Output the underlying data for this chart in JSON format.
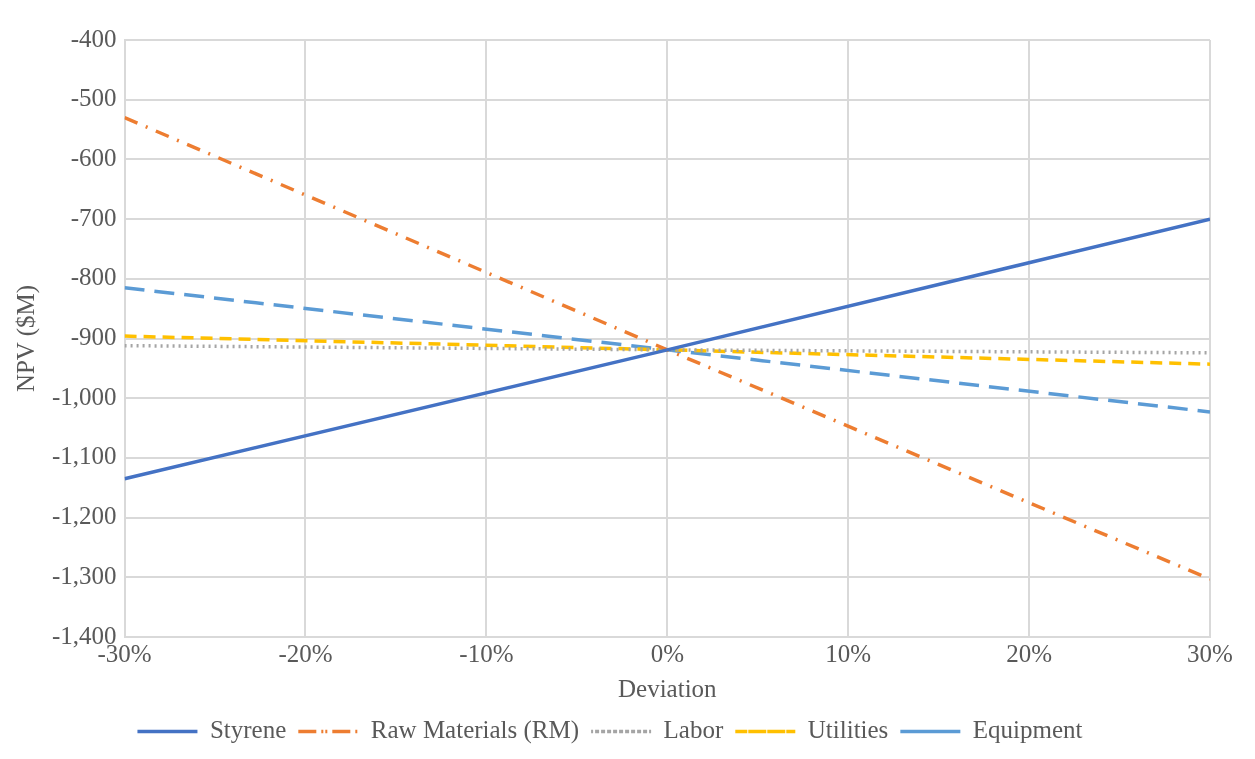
{
  "chart_data": {
    "type": "line",
    "xlabel": "Deviation",
    "ylabel": "NPV ($M)",
    "x": [
      -30,
      0,
      30
    ],
    "series": [
      {
        "name": "Styrene",
        "color": "#4472c4",
        "line_style": "solid",
        "values": [
          -1135,
          -919,
          -700
        ]
      },
      {
        "name": "Raw Materials (RM)",
        "color": "#ed7d31",
        "line_style": "dashdot",
        "values": [
          -530,
          -919,
          -1303
        ]
      },
      {
        "name": "Labor",
        "color": "#a5a5a5",
        "line_style": "dotted",
        "values": [
          -912,
          -919,
          -924
        ]
      },
      {
        "name": "Utilities",
        "color": "#ffc000",
        "line_style": "dashed",
        "values": [
          -896,
          -919,
          -943
        ]
      },
      {
        "name": "Equipment",
        "color": "#5b9bd5",
        "line_style": "longdash",
        "values": [
          -815,
          -919,
          -1023
        ]
      }
    ],
    "xlim": [
      -30,
      30
    ],
    "xticks": [
      {
        "value": -30,
        "label": "-30%"
      },
      {
        "value": -20,
        "label": "-20%"
      },
      {
        "value": -10,
        "label": "-10%"
      },
      {
        "value": 0,
        "label": "0%"
      },
      {
        "value": 10,
        "label": "10%"
      },
      {
        "value": 20,
        "label": "20%"
      },
      {
        "value": 30,
        "label": "30%"
      }
    ],
    "ylim": [
      -1400,
      -400
    ],
    "yticks": [
      {
        "value": -1400,
        "label": "-1,400"
      },
      {
        "value": -1300,
        "label": "-1,300"
      },
      {
        "value": -1200,
        "label": "-1,200"
      },
      {
        "value": -1100,
        "label": "-1,100"
      },
      {
        "value": -1000,
        "label": "-1,000"
      },
      {
        "value": -900,
        "label": "-900"
      },
      {
        "value": -800,
        "label": "-800"
      },
      {
        "value": -700,
        "label": "-700"
      },
      {
        "value": -600,
        "label": "-600"
      },
      {
        "value": -500,
        "label": "-500"
      },
      {
        "value": -400,
        "label": "-400"
      }
    ],
    "grid": true,
    "legend": "bottom",
    "marker": "none"
  }
}
